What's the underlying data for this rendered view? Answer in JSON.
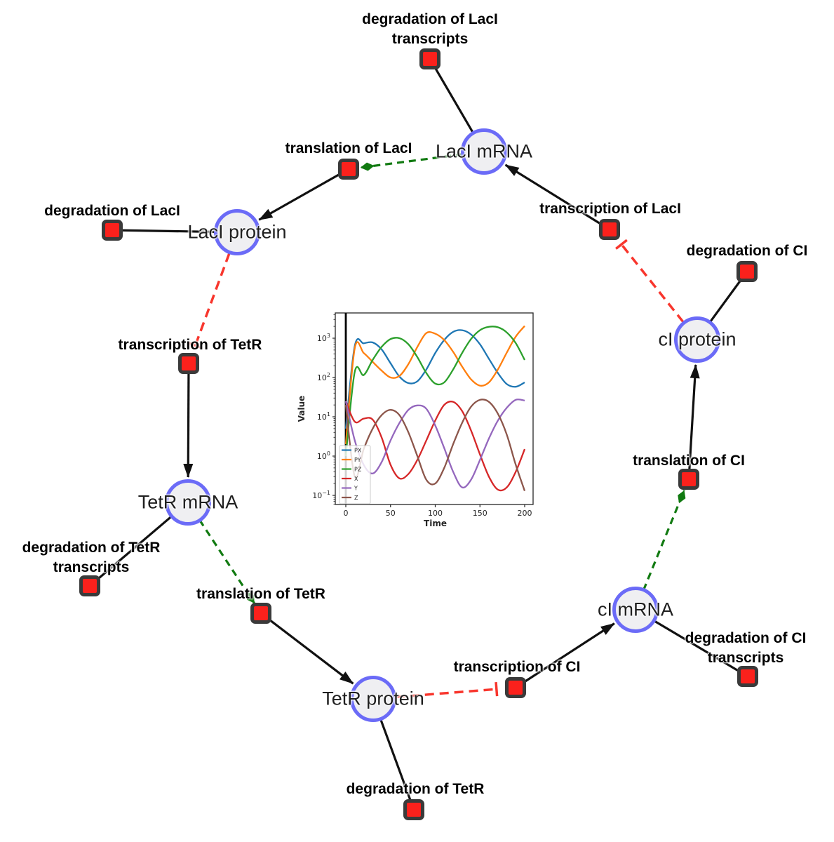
{
  "diagram": {
    "species": [
      {
        "id": "laci_mrna",
        "label": "LacI mRNA"
      },
      {
        "id": "laci_protein",
        "label": "LacI protein"
      },
      {
        "id": "tetr_mrna",
        "label": "TetR mRNA"
      },
      {
        "id": "tetr_protein",
        "label": "TetR protein"
      },
      {
        "id": "ci_mrna",
        "label": "cI mRNA"
      },
      {
        "id": "ci_protein",
        "label": "cI protein"
      }
    ],
    "reactions": [
      {
        "id": "deg_laci_tx",
        "lines": [
          "degradation of LacI",
          "transcripts"
        ]
      },
      {
        "id": "transl_laci",
        "lines": [
          "translation of LacI"
        ]
      },
      {
        "id": "deg_laci",
        "lines": [
          "degradation of LacI"
        ]
      },
      {
        "id": "tx_laci",
        "lines": [
          "transcription of LacI"
        ]
      },
      {
        "id": "deg_ci",
        "lines": [
          "degradation of CI"
        ]
      },
      {
        "id": "tx_tetr",
        "lines": [
          "transcription of TetR"
        ]
      },
      {
        "id": "transl_ci",
        "lines": [
          "translation of CI"
        ]
      },
      {
        "id": "deg_tetr_tx",
        "lines": [
          "degradation of TetR",
          "transcripts"
        ]
      },
      {
        "id": "transl_tetr",
        "lines": [
          "translation of TetR"
        ]
      },
      {
        "id": "deg_ci_tx",
        "lines": [
          "degradation of CI",
          "transcripts"
        ]
      },
      {
        "id": "tx_ci",
        "lines": [
          "transcription of CI"
        ]
      },
      {
        "id": "deg_tetr",
        "lines": [
          "degradation of TetR"
        ]
      }
    ],
    "edges": [
      {
        "from": "laci_mrna",
        "to": "deg_laci_tx",
        "type": "consumption"
      },
      {
        "from": "laci_mrna",
        "to": "transl_laci",
        "type": "modifier"
      },
      {
        "from": "transl_laci",
        "to": "laci_protein",
        "type": "production"
      },
      {
        "from": "laci_protein",
        "to": "deg_laci",
        "type": "consumption"
      },
      {
        "from": "laci_protein",
        "to": "tx_tetr",
        "type": "inhibition"
      },
      {
        "from": "tx_tetr",
        "to": "tetr_mrna",
        "type": "production"
      },
      {
        "from": "tetr_mrna",
        "to": "deg_tetr_tx",
        "type": "consumption"
      },
      {
        "from": "tetr_mrna",
        "to": "transl_tetr",
        "type": "modifier"
      },
      {
        "from": "transl_tetr",
        "to": "tetr_protein",
        "type": "production"
      },
      {
        "from": "tetr_protein",
        "to": "deg_tetr",
        "type": "consumption"
      },
      {
        "from": "tetr_protein",
        "to": "tx_ci",
        "type": "inhibition"
      },
      {
        "from": "tx_ci",
        "to": "ci_mrna",
        "type": "production"
      },
      {
        "from": "ci_mrna",
        "to": "deg_ci_tx",
        "type": "consumption"
      },
      {
        "from": "ci_mrna",
        "to": "transl_ci",
        "type": "modifier"
      },
      {
        "from": "transl_ci",
        "to": "ci_protein",
        "type": "production"
      },
      {
        "from": "ci_protein",
        "to": "deg_ci",
        "type": "consumption"
      },
      {
        "from": "ci_protein",
        "to": "tx_laci",
        "type": "inhibition"
      },
      {
        "from": "tx_laci",
        "to": "laci_mrna",
        "type": "production"
      }
    ],
    "colors": {
      "species_fill": "#efeff2",
      "species_border": "#6b6bf7",
      "reaction_fill": "#fb211c",
      "reaction_border": "#3a3a3a",
      "production_edge": "#111111",
      "consumption_edge": "#111111",
      "modifier_edge": "#117a11",
      "inhibition_edge": "#f8362d"
    }
  },
  "chart_data": {
    "type": "line",
    "title": "",
    "xlabel": "Time",
    "ylabel": "Value",
    "y_scale": "log",
    "x_ticks": [
      0,
      50,
      100,
      150,
      200
    ],
    "y_tick_exponents": [
      -1,
      0,
      1,
      2,
      3
    ],
    "xlim": [
      -12,
      210
    ],
    "ylim": [
      0.061,
      4400
    ],
    "grid": false,
    "legend_position": "lower left",
    "annotations": [
      {
        "type": "vline",
        "x": 0,
        "color": "#000000"
      }
    ],
    "x": [
      0,
      10,
      20,
      30,
      40,
      50,
      60,
      70,
      80,
      90,
      100,
      110,
      120,
      130,
      140,
      150,
      160,
      170,
      180,
      190,
      200
    ],
    "series": [
      {
        "name": "PX",
        "color": "#1f77b4",
        "values": [
          5,
          640,
          740,
          780,
          520,
          230,
          105,
          72,
          80,
          160,
          420,
          900,
          1450,
          1600,
          1250,
          700,
          300,
          130,
          68,
          58,
          75
        ]
      },
      {
        "name": "PY",
        "color": "#ff7f0e",
        "values": [
          2,
          560,
          420,
          250,
          150,
          100,
          110,
          220,
          600,
          1350,
          1300,
          900,
          450,
          190,
          90,
          62,
          75,
          160,
          430,
          1100,
          2050
        ]
      },
      {
        "name": "PZ",
        "color": "#2ca02c",
        "values": [
          1,
          140,
          115,
          280,
          600,
          950,
          1000,
          700,
          330,
          130,
          70,
          75,
          160,
          420,
          950,
          1600,
          1950,
          1900,
          1400,
          750,
          280
        ]
      },
      {
        "name": "X",
        "color": "#d62728",
        "values": [
          25,
          7.5,
          9,
          8.5,
          3,
          0.6,
          0.27,
          0.35,
          0.8,
          2.5,
          8,
          20,
          24,
          14,
          4.5,
          1.1,
          0.3,
          0.14,
          0.16,
          0.4,
          1.5
        ]
      },
      {
        "name": "Y",
        "color": "#9467bd",
        "values": [
          25,
          2.5,
          0.6,
          0.36,
          0.7,
          2.5,
          7,
          15,
          19.5,
          16,
          6,
          1.6,
          0.4,
          0.16,
          0.25,
          0.8,
          2.8,
          8,
          17,
          27,
          26
        ]
      },
      {
        "name": "Z",
        "color": "#8c564b",
        "values": [
          20,
          0.3,
          1.5,
          5,
          11,
          15,
          11,
          4,
          1,
          0.25,
          0.2,
          0.5,
          2,
          7,
          18,
          27,
          24,
          12,
          3.5,
          0.6,
          0.13
        ]
      }
    ]
  }
}
